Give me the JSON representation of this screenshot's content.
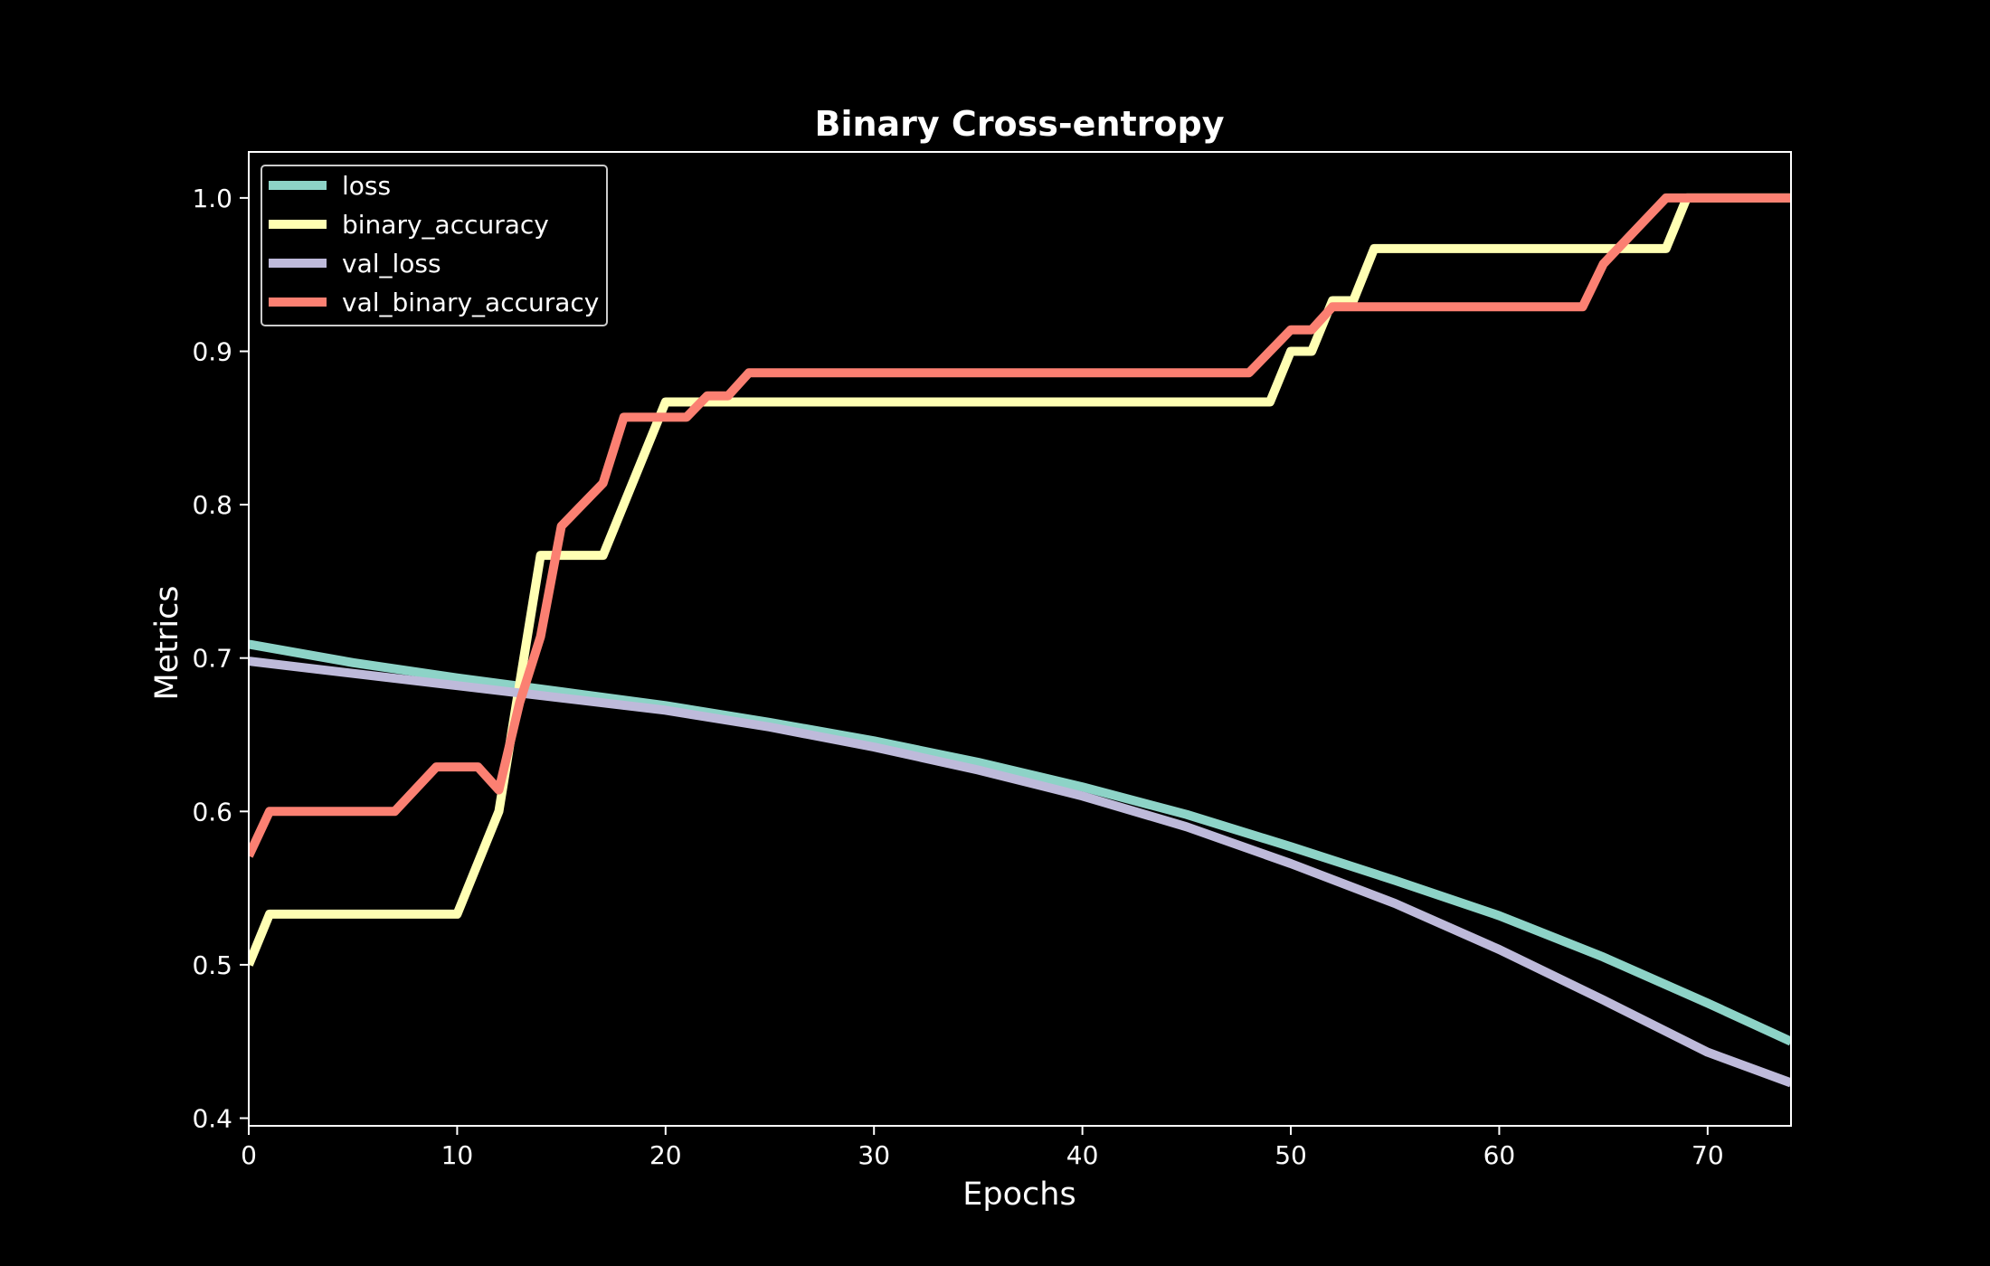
{
  "chart_data": {
    "type": "line",
    "title": "Binary Cross-entropy",
    "xlabel": "Epochs",
    "ylabel": "Metrics",
    "xlim": [
      0,
      74
    ],
    "ylim": [
      0.395,
      1.03
    ],
    "xticks": [
      0,
      10,
      20,
      30,
      40,
      50,
      60,
      70
    ],
    "yticks": [
      0.4,
      0.5,
      0.6,
      0.7,
      0.8,
      0.9,
      1.0
    ],
    "ytick_labels": [
      "0.4",
      "0.5",
      "0.6",
      "0.7",
      "0.8",
      "0.9",
      "1.0"
    ],
    "grid": false,
    "legend_position": "top-left",
    "background": "#000000",
    "series": [
      {
        "name": "loss",
        "color": "#8dd3c7",
        "points": [
          [
            0,
            0.709
          ],
          [
            5,
            0.697
          ],
          [
            10,
            0.687
          ],
          [
            15,
            0.678
          ],
          [
            20,
            0.669
          ],
          [
            25,
            0.658
          ],
          [
            30,
            0.646
          ],
          [
            35,
            0.632
          ],
          [
            40,
            0.616
          ],
          [
            45,
            0.598
          ],
          [
            50,
            0.577
          ],
          [
            55,
            0.555
          ],
          [
            60,
            0.532
          ],
          [
            65,
            0.505
          ],
          [
            70,
            0.475
          ],
          [
            74,
            0.45
          ]
        ]
      },
      {
        "name": "binary_accuracy",
        "color": "#ffffb3",
        "points": [
          [
            0,
            0.5
          ],
          [
            1,
            0.533
          ],
          [
            10,
            0.533
          ],
          [
            12,
            0.6
          ],
          [
            14,
            0.767
          ],
          [
            17,
            0.767
          ],
          [
            20,
            0.867
          ],
          [
            49,
            0.867
          ],
          [
            50,
            0.9
          ],
          [
            51,
            0.9
          ],
          [
            52,
            0.933
          ],
          [
            53,
            0.933
          ],
          [
            54,
            0.967
          ],
          [
            68,
            0.967
          ],
          [
            69,
            1.0
          ],
          [
            74,
            1.0
          ]
        ]
      },
      {
        "name": "val_loss",
        "color": "#bebada",
        "points": [
          [
            0,
            0.698
          ],
          [
            5,
            0.69
          ],
          [
            10,
            0.682
          ],
          [
            15,
            0.674
          ],
          [
            20,
            0.666
          ],
          [
            25,
            0.655
          ],
          [
            30,
            0.642
          ],
          [
            35,
            0.627
          ],
          [
            40,
            0.61
          ],
          [
            45,
            0.59
          ],
          [
            50,
            0.566
          ],
          [
            55,
            0.54
          ],
          [
            60,
            0.51
          ],
          [
            65,
            0.477
          ],
          [
            70,
            0.443
          ],
          [
            74,
            0.423
          ]
        ]
      },
      {
        "name": "val_binary_accuracy",
        "color": "#fb8072",
        "points": [
          [
            0,
            0.571
          ],
          [
            1,
            0.6
          ],
          [
            7,
            0.6
          ],
          [
            9,
            0.629
          ],
          [
            11,
            0.629
          ],
          [
            12,
            0.614
          ],
          [
            13,
            0.671
          ],
          [
            14,
            0.714
          ],
          [
            15,
            0.786
          ],
          [
            17,
            0.814
          ],
          [
            18,
            0.857
          ],
          [
            21,
            0.857
          ],
          [
            22,
            0.871
          ],
          [
            23,
            0.871
          ],
          [
            24,
            0.886
          ],
          [
            48,
            0.886
          ],
          [
            50,
            0.914
          ],
          [
            51,
            0.914
          ],
          [
            52,
            0.929
          ],
          [
            64,
            0.929
          ],
          [
            65,
            0.957
          ],
          [
            68,
            1.0
          ],
          [
            74,
            1.0
          ]
        ]
      }
    ]
  }
}
